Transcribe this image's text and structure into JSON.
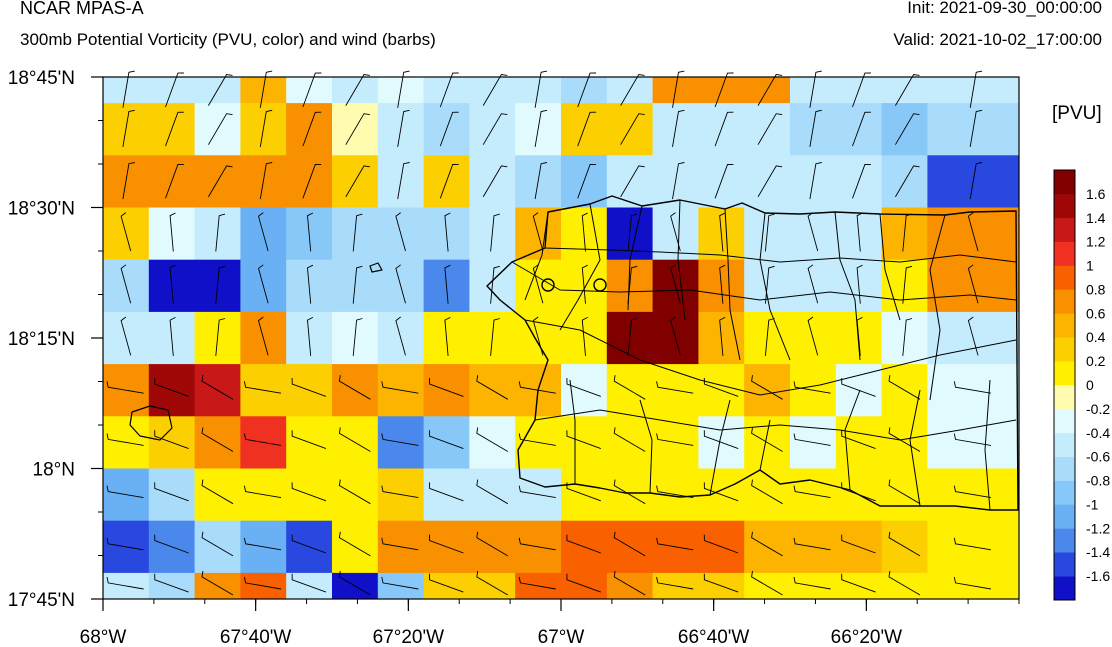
{
  "header": {
    "title": "NCAR MPAS-A",
    "subtitle": "300mb Potential Vorticity (PVU, color) and wind (barbs)",
    "init": "Init: 2021-09-30_00:00:00",
    "valid": "Valid: 2021-10-02_17:00:00"
  },
  "colorbar": {
    "unit_label": "[PVU]",
    "levels": [
      "-1.6",
      "-1.4",
      "-1.2",
      "-1",
      "-0.8",
      "-0.6",
      "-0.4",
      "-0.2",
      "0",
      "0.2",
      "0.4",
      "0.6",
      "0.8",
      "1",
      "1.2",
      "1.4",
      "1.6"
    ],
    "colors": [
      "#1010c8",
      "#2848e0",
      "#4a88ec",
      "#6ab0f4",
      "#88c8f8",
      "#a8dcfa",
      "#c4ecfc",
      "#e0fafe",
      "#fffcb0",
      "#fff000",
      "#fcd000",
      "#fcb400",
      "#f89000",
      "#f86000",
      "#f03020",
      "#c81818",
      "#a00808",
      "#800000"
    ]
  },
  "chart_data": {
    "type": "heatmap",
    "title": "300mb Potential Vorticity (PVU, color) and wind (barbs)",
    "xlabel": "",
    "ylabel": "",
    "x_ticks": [
      "68°W",
      "67°40'W",
      "67°20'W",
      "67°W",
      "66°40'W",
      "66°20'W"
    ],
    "x_tick_values": [
      -68.0,
      -67.6667,
      -67.3333,
      -67.0,
      -66.6667,
      -66.3333
    ],
    "y_ticks": [
      "18°45'N",
      "18°30'N",
      "18°15'N",
      "18°N",
      "17°45'N"
    ],
    "y_tick_values": [
      18.75,
      18.5,
      18.25,
      18.0,
      17.75
    ],
    "xlim": [
      -68.0,
      -66.0
    ],
    "ylim": [
      17.75,
      18.75
    ],
    "grid_lon_edges": [
      -68.0,
      -67.9,
      -67.8,
      -67.7,
      -67.6,
      -67.5,
      -67.4,
      -67.3,
      -67.2,
      -67.1,
      -67.0,
      -66.9,
      -66.8,
      -66.7,
      -66.6,
      -66.5,
      -66.4,
      -66.3,
      -66.2,
      -66.0
    ],
    "grid_lat_edges": [
      18.75,
      18.7,
      18.6,
      18.5,
      18.4,
      18.3,
      18.2,
      18.1,
      18.0,
      17.9,
      17.8,
      17.75
    ],
    "pv_class_index": [
      [
        6,
        6,
        6,
        11,
        7,
        6,
        7,
        6,
        6,
        6,
        5,
        6,
        12,
        12,
        12,
        6,
        6,
        6,
        6
      ],
      [
        10,
        10,
        7,
        10,
        12,
        8,
        6,
        5,
        6,
        7,
        10,
        10,
        6,
        6,
        6,
        5,
        5,
        4,
        5
      ],
      [
        12,
        12,
        12,
        12,
        12,
        10,
        6,
        10,
        6,
        5,
        4,
        6,
        6,
        6,
        6,
        6,
        6,
        5,
        1
      ],
      [
        10,
        7,
        6,
        3,
        4,
        5,
        5,
        5,
        6,
        11,
        9,
        0,
        6,
        10,
        6,
        6,
        6,
        11,
        12
      ],
      [
        5,
        0,
        0,
        3,
        5,
        5,
        5,
        2,
        6,
        9,
        9,
        12,
        17,
        12,
        6,
        6,
        6,
        9,
        12
      ],
      [
        6,
        6,
        9,
        12,
        6,
        7,
        6,
        9,
        9,
        9,
        9,
        17,
        17,
        11,
        9,
        9,
        9,
        7,
        6
      ],
      [
        12,
        16,
        15,
        10,
        10,
        12,
        11,
        12,
        11,
        11,
        7,
        9,
        9,
        9,
        11,
        9,
        7,
        9,
        7
      ],
      [
        9,
        10,
        12,
        14,
        9,
        9,
        2,
        4,
        7,
        9,
        9,
        9,
        9,
        7,
        9,
        7,
        9,
        9,
        7
      ],
      [
        3,
        5,
        9,
        9,
        9,
        9,
        10,
        6,
        6,
        6,
        9,
        9,
        9,
        9,
        9,
        9,
        9,
        9,
        9
      ],
      [
        1,
        2,
        5,
        3,
        1,
        9,
        12,
        12,
        12,
        12,
        13,
        13,
        13,
        13,
        11,
        11,
        11,
        10,
        9
      ],
      [
        6,
        5,
        12,
        13,
        6,
        0,
        4,
        10,
        10,
        13,
        13,
        12,
        10,
        10,
        9,
        9,
        9,
        9,
        9
      ]
    ],
    "wind_barb_count": 209,
    "legend": "colorbar right"
  }
}
